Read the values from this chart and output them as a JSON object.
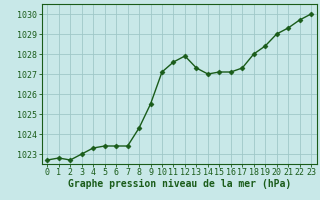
{
  "x": [
    0,
    1,
    2,
    3,
    4,
    5,
    6,
    7,
    8,
    9,
    10,
    11,
    12,
    13,
    14,
    15,
    16,
    17,
    18,
    19,
    20,
    21,
    22,
    23
  ],
  "y": [
    1022.7,
    1022.8,
    1022.7,
    1023.0,
    1023.3,
    1023.4,
    1023.4,
    1023.4,
    1024.3,
    1025.5,
    1027.1,
    1027.6,
    1027.9,
    1027.3,
    1027.0,
    1027.1,
    1027.1,
    1027.3,
    1028.0,
    1028.4,
    1029.0,
    1029.3,
    1029.7,
    1030.0
  ],
  "line_color": "#1a5c1a",
  "marker": "D",
  "marker_size": 2.5,
  "bg_color": "#c8e8e8",
  "grid_color": "#a0c8c8",
  "xlabel": "Graphe pression niveau de la mer (hPa)",
  "xlabel_color": "#1a5c1a",
  "tick_color": "#1a5c1a",
  "ylim": [
    1022.5,
    1030.5
  ],
  "yticks": [
    1023,
    1024,
    1025,
    1026,
    1027,
    1028,
    1029,
    1030
  ],
  "xticks": [
    0,
    1,
    2,
    3,
    4,
    5,
    6,
    7,
    8,
    9,
    10,
    11,
    12,
    13,
    14,
    15,
    16,
    17,
    18,
    19,
    20,
    21,
    22,
    23
  ],
  "spine_color": "#1a5c1a",
  "linewidth": 1.0,
  "tick_fontsize": 6.0,
  "xlabel_fontsize": 7.0
}
